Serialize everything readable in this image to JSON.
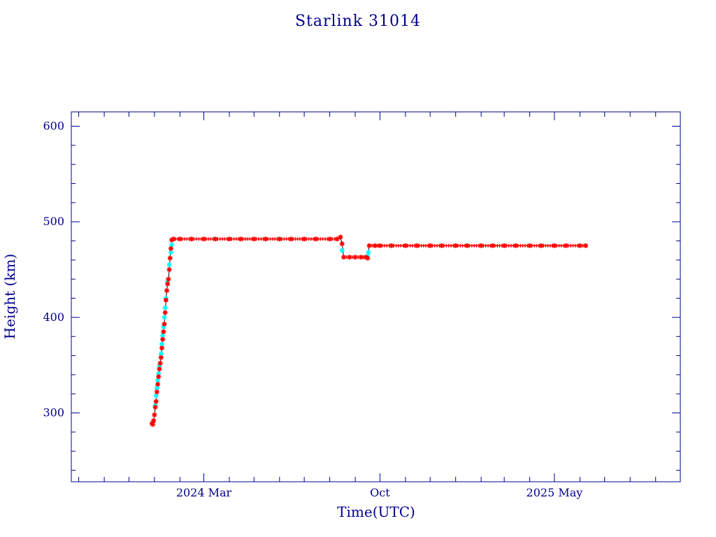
{
  "chart_data": {
    "type": "scatter",
    "title": "Starlink 31014",
    "xlabel": "Time(UTC)",
    "ylabel": "Height (km)",
    "xlim": [
      "2023-09-22",
      "2025-10-01"
    ],
    "ylim": [
      228,
      615
    ],
    "x_ticks": [
      {
        "date": "2024-03-01",
        "label": "2024 Mar"
      },
      {
        "date": "2024-10-01",
        "label": "Oct"
      },
      {
        "date": "2025-05-01",
        "label": "2025 May"
      }
    ],
    "y_ticks": [
      300,
      400,
      500,
      600
    ],
    "grid": false,
    "colors": {
      "axes": "#00008b",
      "primary": "#ff0000",
      "secondary": "#00ffff",
      "line": "#000000"
    },
    "series": [
      {
        "color": "#ff0000",
        "points": [
          [
            "2023-12-29",
            289
          ],
          [
            "2023-12-30",
            288
          ],
          [
            "2023-12-31",
            292
          ],
          [
            "2024-01-01",
            298
          ],
          [
            "2024-01-02",
            306
          ],
          [
            "2024-01-03",
            312
          ],
          [
            "2024-01-04",
            322
          ],
          [
            "2024-01-05",
            330
          ],
          [
            "2024-01-06",
            338
          ],
          [
            "2024-01-07",
            346
          ],
          [
            "2024-01-08",
            352
          ],
          [
            "2024-01-09",
            358
          ],
          [
            "2024-01-10",
            368
          ],
          [
            "2024-01-11",
            377
          ],
          [
            "2024-01-12",
            385
          ],
          [
            "2024-01-13",
            393
          ],
          [
            "2024-01-14",
            405
          ],
          [
            "2024-01-15",
            418
          ],
          [
            "2024-01-16",
            428
          ],
          [
            "2024-01-17",
            435
          ],
          [
            "2024-01-18",
            440
          ],
          [
            "2024-01-19",
            450
          ],
          [
            "2024-01-20",
            462
          ],
          [
            "2024-01-21",
            472
          ],
          [
            "2024-01-22",
            481
          ],
          [
            "2024-01-24",
            482
          ],
          [
            "2024-02-01",
            482
          ],
          [
            "2024-02-15",
            482
          ],
          [
            "2024-03-01",
            482
          ],
          [
            "2024-03-15",
            482
          ],
          [
            "2024-04-01",
            482
          ],
          [
            "2024-04-15",
            482
          ],
          [
            "2024-05-01",
            482
          ],
          [
            "2024-05-15",
            482
          ],
          [
            "2024-06-01",
            482
          ],
          [
            "2024-06-15",
            482
          ],
          [
            "2024-07-01",
            482
          ],
          [
            "2024-07-15",
            482
          ],
          [
            "2024-08-01",
            482
          ],
          [
            "2024-08-10",
            482
          ],
          [
            "2024-08-14",
            484
          ],
          [
            "2024-08-16",
            477
          ],
          [
            "2024-08-18",
            463
          ],
          [
            "2024-08-25",
            463
          ],
          [
            "2024-09-01",
            463
          ],
          [
            "2024-09-08",
            463
          ],
          [
            "2024-09-14",
            463
          ],
          [
            "2024-09-16",
            462
          ],
          [
            "2024-09-18",
            475
          ],
          [
            "2024-09-25",
            475
          ],
          [
            "2024-10-01",
            475
          ],
          [
            "2024-10-15",
            475
          ],
          [
            "2024-11-01",
            475
          ],
          [
            "2024-11-15",
            475
          ],
          [
            "2024-12-01",
            475
          ],
          [
            "2024-12-15",
            475
          ],
          [
            "2025-01-01",
            475
          ],
          [
            "2025-01-15",
            475
          ],
          [
            "2025-02-01",
            475
          ],
          [
            "2025-02-15",
            475
          ],
          [
            "2025-03-01",
            475
          ],
          [
            "2025-03-15",
            475
          ],
          [
            "2025-04-01",
            475
          ],
          [
            "2025-04-15",
            475
          ],
          [
            "2025-05-01",
            475
          ],
          [
            "2025-05-15",
            475
          ],
          [
            "2025-06-01",
            475
          ],
          [
            "2025-06-08",
            475
          ]
        ]
      },
      {
        "color": "#00ffff",
        "points": [
          [
            "2024-01-02",
            308
          ],
          [
            "2024-01-03",
            318
          ],
          [
            "2024-01-04",
            326
          ],
          [
            "2024-01-05",
            334
          ],
          [
            "2024-01-06",
            341
          ],
          [
            "2024-01-07",
            349
          ],
          [
            "2024-01-09",
            362
          ],
          [
            "2024-01-10",
            372
          ],
          [
            "2024-01-11",
            381
          ],
          [
            "2024-01-12",
            390
          ],
          [
            "2024-01-13",
            400
          ],
          [
            "2024-01-14",
            410
          ],
          [
            "2024-01-15",
            420
          ],
          [
            "2024-01-17",
            437
          ],
          [
            "2024-01-19",
            455
          ],
          [
            "2024-01-21",
            468
          ],
          [
            "2024-01-22",
            476
          ],
          [
            "2024-08-16",
            470
          ],
          [
            "2024-09-16",
            464
          ],
          [
            "2024-09-17",
            468
          ]
        ]
      }
    ]
  }
}
